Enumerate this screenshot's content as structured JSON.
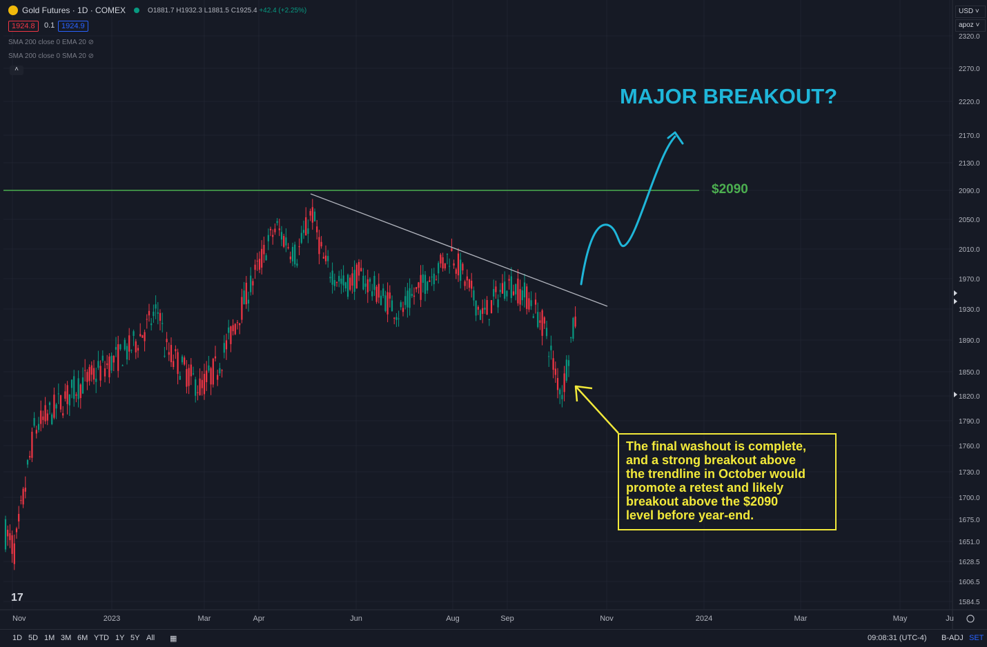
{
  "header": {
    "symbol": "Gold Futures · 1D · COMEX",
    "open": "O1881.7",
    "high": "H1932.3",
    "low": "L1881.5",
    "close": "C1925.4",
    "change": "+42.4 (+2.25%)",
    "bid": "1924.8",
    "spread": "0.1",
    "ask": "1924.9"
  },
  "indicators": [
    "SMA 200 close 0 EMA 20",
    "SMA 200 close 0 SMA 20"
  ],
  "top_right": {
    "currency": "USD",
    "scale_label": "apoz"
  },
  "bottom_bar": {
    "timeframes": [
      "1D",
      "5D",
      "1M",
      "3M",
      "6M",
      "YTD",
      "1Y",
      "5Y",
      "All"
    ],
    "clock": "09:08:31 (UTC-4)",
    "adj": "B-ADJ",
    "set": "SET"
  },
  "annotations": {
    "headline": "MAJOR BREAKOUT?",
    "level_label": "$2090",
    "note_lines": [
      "The final washout is complete,",
      "and a strong breakout above",
      "the trendline in October would",
      "promote a retest and likely",
      "breakout above the $2090",
      "level before year-end."
    ]
  },
  "colors": {
    "up": "#089981",
    "down": "#f23645",
    "background": "#161a25",
    "level": "#4caf50",
    "headline": "#1fb6d9",
    "note": "#f2e93a",
    "trendline": "#b2b5be"
  },
  "chart_data": {
    "type": "candlestick",
    "y_axis_ticks": [
      2320,
      2270,
      2220,
      2170,
      2130,
      2090,
      2050,
      2010,
      1970,
      1930,
      1890,
      1850,
      1820,
      1790,
      1760,
      1730,
      1700,
      1675,
      1651,
      1628.5,
      1606.5,
      1584.5
    ],
    "x_axis_ticks": [
      "Nov",
      "2023",
      "Mar",
      "Apr",
      "Jun",
      "Aug",
      "Sep",
      "Nov",
      "2024",
      "Mar",
      "May",
      "Ju"
    ],
    "horizontal_level": 2090,
    "series_path": [
      [
        "Nov",
        1660
      ],
      [
        "Nov",
        1640
      ],
      [
        "Dec",
        1780
      ],
      [
        "2023",
        1830
      ],
      [
        "2023",
        1880
      ],
      [
        "Feb",
        1930
      ],
      [
        "Feb",
        1880
      ],
      [
        "Mar",
        1830
      ],
      [
        "Mar",
        1860
      ],
      [
        "Apr",
        2010
      ],
      [
        "Apr",
        2040
      ],
      [
        "May",
        2000
      ],
      [
        "May",
        2060
      ],
      [
        "May",
        1990
      ],
      [
        "Jun",
        1960
      ],
      [
        "Jun",
        1975
      ],
      [
        "Jul",
        1925
      ],
      [
        "Jul",
        1960
      ],
      [
        "Aug",
        2005
      ],
      [
        "Aug",
        1975
      ],
      [
        "Aug",
        1920
      ],
      [
        "Sep",
        1965
      ],
      [
        "Sep",
        1945
      ],
      [
        "Sep",
        1905
      ],
      [
        "Oct",
        1845
      ],
      [
        "Oct",
        1825
      ],
      [
        "Oct",
        1880
      ],
      [
        "Oct",
        1925
      ]
    ]
  }
}
